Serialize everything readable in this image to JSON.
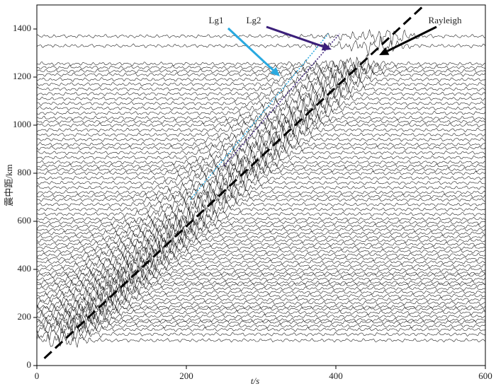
{
  "chart_data": {
    "type": "record-section",
    "xlabel": "t/s",
    "ylabel": "震中距/km",
    "xlim": [
      0,
      600
    ],
    "ylim": [
      0,
      1500
    ],
    "xticks": [
      0,
      200,
      400,
      600
    ],
    "yticks": [
      0,
      200,
      400,
      600,
      800,
      1000,
      1200,
      1400
    ],
    "trace_color": "#222",
    "distances": [
      105,
      130,
      150,
      165,
      180,
      190,
      205,
      220,
      235,
      245,
      260,
      275,
      290,
      305,
      320,
      335,
      345,
      360,
      375,
      385,
      400,
      415,
      430,
      445,
      460,
      475,
      490,
      505,
      520,
      535,
      550,
      565,
      580,
      595,
      610,
      630,
      650,
      670,
      690,
      705,
      720,
      740,
      760,
      780,
      800,
      815,
      830,
      845,
      865,
      885,
      905,
      920,
      940,
      960,
      980,
      1000,
      1015,
      1030,
      1050,
      1070,
      1090,
      1110,
      1130,
      1150,
      1170,
      1190,
      1210,
      1225,
      1240,
      1255,
      1330,
      1370
    ],
    "series": [
      {
        "name": "Lg1",
        "color": "#29a9e0",
        "style": "dotted",
        "x": [
          205,
          390
        ],
        "y": [
          690,
          1380
        ]
      },
      {
        "name": "Lg2",
        "color": "#3b1f7a",
        "style": "dotted",
        "x": [
          250,
          405
        ],
        "y": [
          830,
          1380
        ]
      },
      {
        "name": "Rayleigh",
        "color": "#000000",
        "style": "dashed",
        "x": [
          10,
          515
        ],
        "y": [
          30,
          1490
        ]
      }
    ]
  }
}
